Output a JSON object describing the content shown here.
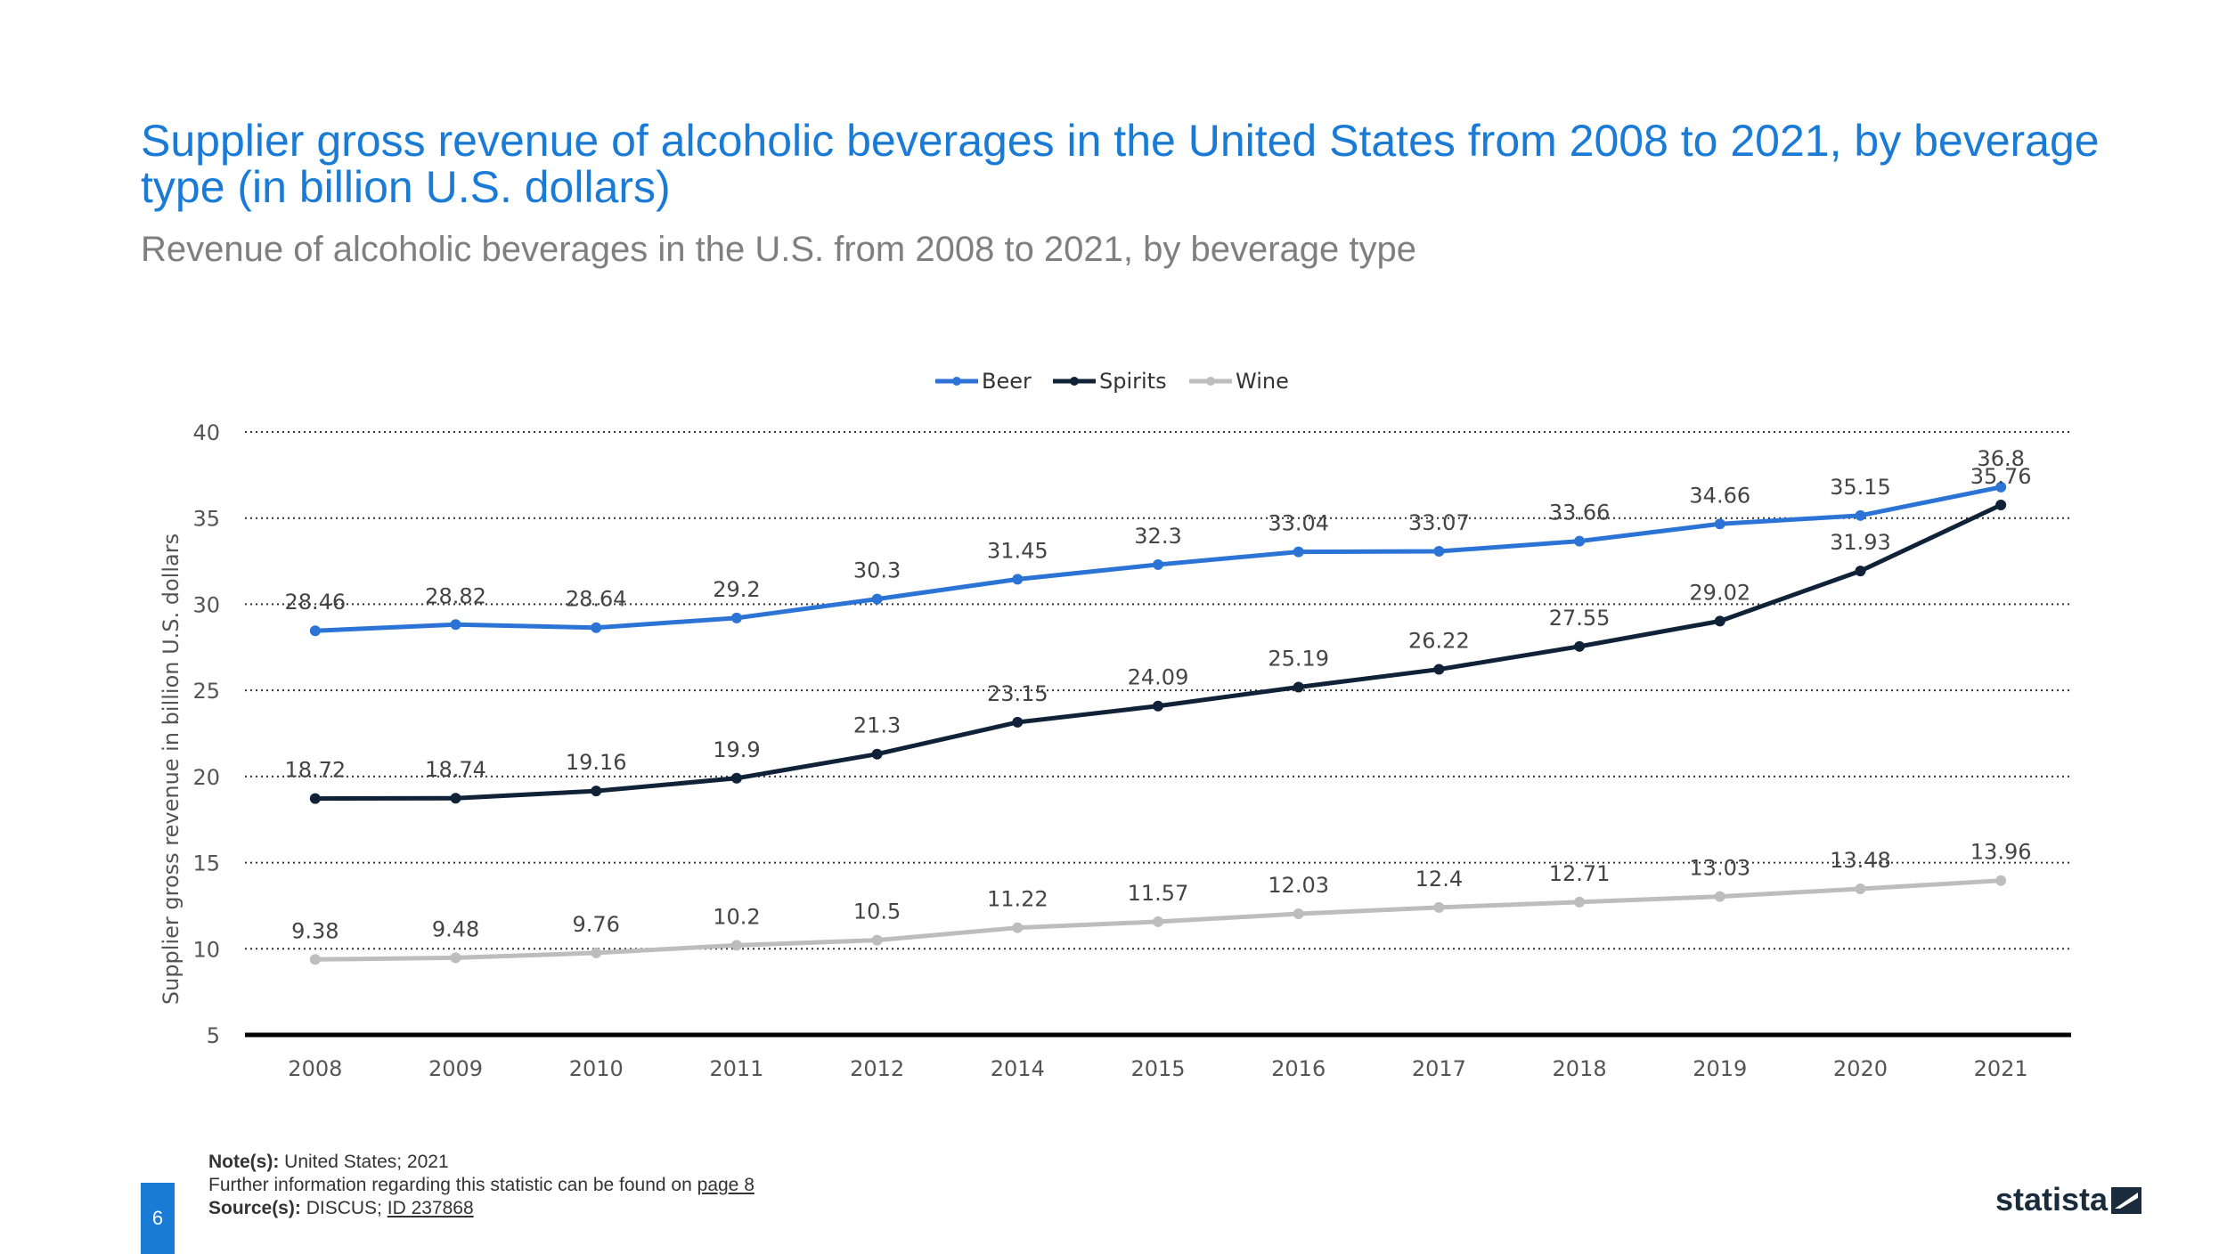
{
  "header": {
    "title": "Supplier gross revenue of alcoholic beverages in the United States from 2008 to 2021, by beverage type (in billion U.S. dollars)",
    "subtitle": "Revenue of alcoholic beverages in the U.S. from 2008 to 2021, by beverage type"
  },
  "chart_data": {
    "type": "line",
    "categories": [
      "2008",
      "2009",
      "2010",
      "2011",
      "2012",
      "2014",
      "2015",
      "2016",
      "2017",
      "2018",
      "2019",
      "2020",
      "2021"
    ],
    "series": [
      {
        "name": "Beer",
        "color": "#2b74d6",
        "values": [
          28.46,
          28.82,
          28.64,
          29.2,
          30.3,
          31.45,
          32.3,
          33.04,
          33.07,
          33.66,
          34.66,
          35.15,
          36.8
        ]
      },
      {
        "name": "Spirits",
        "color": "#0f2237",
        "values": [
          18.72,
          18.74,
          19.16,
          19.9,
          21.3,
          23.15,
          24.09,
          25.19,
          26.22,
          27.55,
          29.02,
          31.93,
          35.76
        ]
      },
      {
        "name": "Wine",
        "color": "#bdbdbd",
        "values": [
          9.38,
          9.48,
          9.76,
          10.2,
          10.5,
          11.22,
          11.57,
          12.03,
          12.4,
          12.71,
          13.03,
          13.48,
          13.96
        ]
      }
    ],
    "ylabel": "Supplier gross revenue in billion U.S. dollars",
    "xlabel": "",
    "ylim": [
      5,
      40
    ],
    "yticks": [
      5,
      10,
      15,
      20,
      25,
      30,
      35,
      40
    ],
    "grid": true,
    "legend": "top-center"
  },
  "footer": {
    "notes_label": "Note(s):",
    "notes_text": "United States; 2021",
    "further_text": "Further information regarding this statistic can be found on",
    "further_link": "page 8",
    "source_label": "Source(s):",
    "source_text": "DISCUS;",
    "source_link": "ID 237868",
    "page_number": "6",
    "brand": "statista"
  }
}
